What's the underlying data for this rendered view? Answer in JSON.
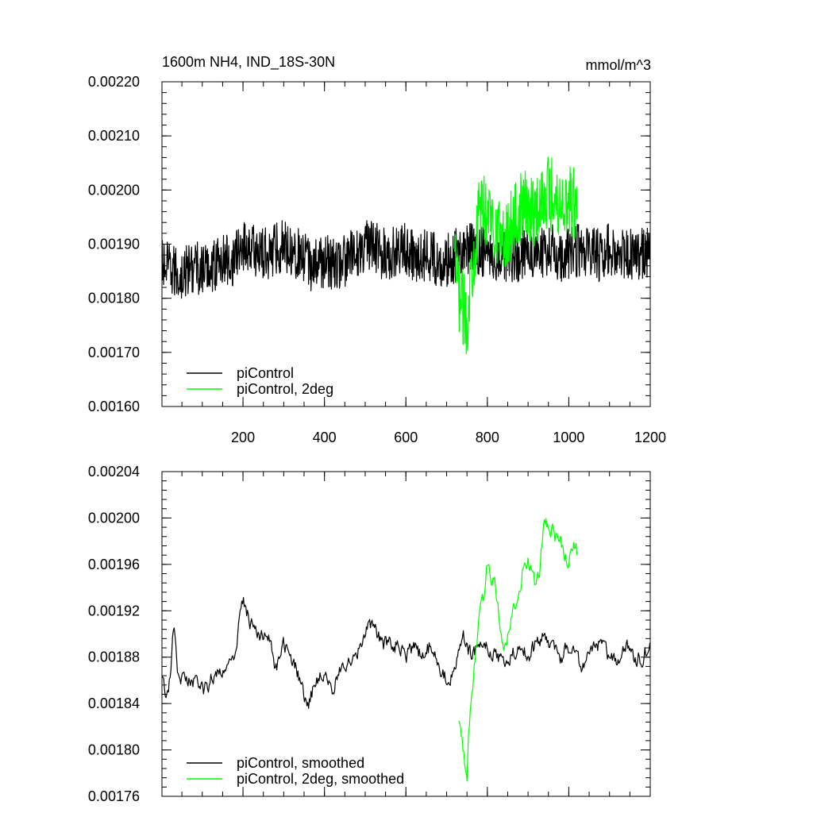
{
  "figure": {
    "title": "1600m NH4, IND_18S-30N",
    "units": "mmol/m^3"
  },
  "chart_data": [
    {
      "type": "line",
      "panel": "top",
      "xlim": [
        1,
        1200
      ],
      "ylim": [
        0.0016,
        0.0022
      ],
      "xticks": [
        200,
        400,
        600,
        800,
        1000,
        1200
      ],
      "xtick_labels": [
        "200",
        "400",
        "600",
        "800",
        "1000",
        "1200"
      ],
      "yticks": [
        0.0016,
        0.0017,
        0.0018,
        0.0019,
        0.002,
        0.0021,
        0.0022
      ],
      "ytick_labels": [
        "0.00160",
        "0.00170",
        "0.00180",
        "0.00190",
        "0.00200",
        "0.00210",
        "0.00220"
      ],
      "grid": false,
      "legend": "bottom-left",
      "series": [
        {
          "name": "piControl",
          "color": "#000000",
          "x": [
            1,
            25,
            50,
            75,
            100,
            125,
            150,
            175,
            200,
            225,
            250,
            275,
            300,
            325,
            350,
            375,
            400,
            425,
            450,
            475,
            500,
            525,
            550,
            575,
            600,
            625,
            650,
            675,
            700,
            725,
            750,
            775,
            800,
            825,
            850,
            875,
            900,
            925,
            950,
            975,
            1000,
            1025,
            1050,
            1075,
            1100,
            1125,
            1150,
            1175,
            1200
          ],
          "values": [
            0.00186,
            0.00185,
            0.00184,
            0.00186,
            0.00185,
            0.00186,
            0.00187,
            0.00187,
            0.0019,
            0.00189,
            0.00188,
            0.00189,
            0.0019,
            0.00189,
            0.00187,
            0.00186,
            0.00187,
            0.00186,
            0.00187,
            0.00188,
            0.0019,
            0.00189,
            0.00188,
            0.00189,
            0.00189,
            0.00188,
            0.00188,
            0.00187,
            0.00187,
            0.00188,
            0.00189,
            0.00189,
            0.00189,
            0.00188,
            0.00188,
            0.00188,
            0.00189,
            0.00188,
            0.00189,
            0.00188,
            0.00188,
            0.00189,
            0.00188,
            0.00188,
            0.00189,
            0.00188,
            0.00188,
            0.00188,
            0.00188
          ],
          "noise_amplitude": 5e-05
        },
        {
          "name": "piControl, 2deg",
          "color": "#00ff00",
          "x": [
            720,
            730,
            740,
            750,
            760,
            770,
            780,
            790,
            800,
            820,
            840,
            860,
            880,
            900,
            920,
            940,
            960,
            980,
            1000,
            1020
          ],
          "values": [
            0.00186,
            0.00181,
            0.00178,
            0.00176,
            0.00185,
            0.0019,
            0.00195,
            0.00197,
            0.00196,
            0.00194,
            0.0019,
            0.00194,
            0.00196,
            0.00197,
            0.00196,
            0.002,
            0.00199,
            0.00198,
            0.00198,
            0.00197
          ],
          "noise_amplitude": 7e-05
        }
      ]
    },
    {
      "type": "line",
      "panel": "bottom",
      "xlim": [
        1,
        1200
      ],
      "ylim": [
        0.00176,
        0.00204
      ],
      "xticks": [
        200,
        400,
        600,
        800,
        1000,
        1200
      ],
      "yticks": [
        0.00176,
        0.0018,
        0.00184,
        0.00188,
        0.00192,
        0.00196,
        0.002,
        0.00204
      ],
      "ytick_labels": [
        "0.00176",
        "0.00180",
        "0.00184",
        "0.00188",
        "0.00192",
        "0.00196",
        "0.00200",
        "0.00204"
      ],
      "grid": false,
      "legend": "bottom-left",
      "series": [
        {
          "name": "piControl, smoothed",
          "color": "#000000",
          "x": [
            1,
            10,
            20,
            30,
            40,
            60,
            80,
            100,
            120,
            140,
            160,
            180,
            200,
            220,
            240,
            260,
            280,
            300,
            320,
            340,
            360,
            380,
            400,
            420,
            440,
            460,
            480,
            500,
            520,
            540,
            560,
            580,
            600,
            620,
            640,
            660,
            680,
            700,
            720,
            740,
            760,
            780,
            800,
            820,
            840,
            860,
            880,
            900,
            920,
            940,
            960,
            980,
            1000,
            1020,
            1040,
            1060,
            1080,
            1100,
            1120,
            1140,
            1160,
            1180,
            1200
          ],
          "values": [
            0.00187,
            0.00184,
            0.00186,
            0.00191,
            0.00186,
            0.00186,
            0.00186,
            0.00185,
            0.00186,
            0.00187,
            0.00187,
            0.00188,
            0.00193,
            0.00191,
            0.0019,
            0.0019,
            0.00187,
            0.00189,
            0.00188,
            0.00186,
            0.00184,
            0.00186,
            0.00187,
            0.00185,
            0.00187,
            0.00188,
            0.00188,
            0.0019,
            0.00191,
            0.00189,
            0.00189,
            0.00189,
            0.00188,
            0.00189,
            0.00188,
            0.00189,
            0.00187,
            0.00186,
            0.00187,
            0.0019,
            0.00188,
            0.00189,
            0.00189,
            0.00188,
            0.00188,
            0.00188,
            0.00189,
            0.00188,
            0.00189,
            0.0019,
            0.00189,
            0.00188,
            0.00189,
            0.00188,
            0.00187,
            0.00189,
            0.00189,
            0.00188,
            0.00188,
            0.00189,
            0.00188,
            0.00188,
            0.00189
          ],
          "noise_amplitude": 1.2e-05
        },
        {
          "name": "piControl, 2deg, smoothed",
          "color": "#00ff00",
          "x": [
            730,
            740,
            750,
            755,
            760,
            770,
            780,
            790,
            800,
            810,
            820,
            830,
            840,
            850,
            860,
            870,
            880,
            890,
            900,
            910,
            920,
            930,
            940,
            950,
            960,
            970,
            980,
            990,
            1000,
            1010,
            1020
          ],
          "values": [
            0.00183,
            0.0018,
            0.00178,
            0.00182,
            0.00184,
            0.00188,
            0.00191,
            0.00193,
            0.00196,
            0.00195,
            0.00194,
            0.00191,
            0.00189,
            0.0019,
            0.00192,
            0.00193,
            0.00194,
            0.00196,
            0.00196,
            0.00195,
            0.00194,
            0.00196,
            0.002,
            0.00199,
            0.00199,
            0.00198,
            0.00198,
            0.00197,
            0.00196,
            0.00198,
            0.00197
          ],
          "noise_amplitude": 1.2e-05
        }
      ]
    }
  ]
}
